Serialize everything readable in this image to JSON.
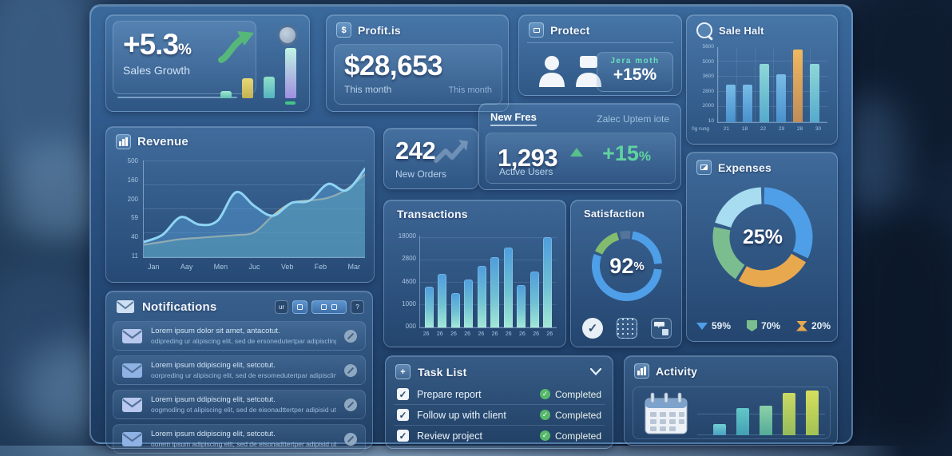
{
  "cards": {
    "sales_growth": {
      "value": "+5.3",
      "unit": "%",
      "label": "Sales Growth",
      "accent": "#55b87a"
    },
    "profit": {
      "title": "Profit.is",
      "value": "$28,653",
      "period": "This month",
      "period_right": "This month"
    },
    "protect": {
      "title": "Protect",
      "badge_label": "Jera moth",
      "badge_value": "+15%"
    },
    "sale_halt": {
      "title": "Sale Halt"
    },
    "revenue": {
      "title": "Revenue"
    },
    "orders": {
      "value": "242",
      "label": "New Orders"
    },
    "users_panel": {
      "tab_active": "New Fres",
      "tab_inactive": "Zalec Uptem iote",
      "value": "1,293",
      "label": "Active Users",
      "delta": "+15",
      "delta_unit": "%"
    },
    "transactions": {
      "title": "Transactions"
    },
    "satisfaction": {
      "title": "Satisfaction",
      "value": "92",
      "unit": "%"
    },
    "expenses": {
      "title": "Expenses",
      "center_label": "25%",
      "legend": [
        {
          "icon": "triangle-down-icon",
          "color": "#4f9fe8",
          "label": "59%"
        },
        {
          "icon": "shield-icon",
          "color": "#7bbd8f",
          "label": "70%"
        },
        {
          "icon": "hourglass-icon",
          "color": "#e8a84e",
          "label": "20%"
        }
      ]
    },
    "notifications": {
      "title": "Notifications",
      "buttons": [
        {
          "label": "ur",
          "style": "dark"
        },
        {
          "label": "",
          "style": "blue"
        },
        {
          "label": "",
          "style": "pill"
        },
        {
          "label": "?",
          "style": "dark"
        }
      ],
      "rows": [
        {
          "line1": "Lorem ipsum dolor sit amet, antacotut.",
          "line2": "odipreding ur alipiscing elit, sed de ersonedutertpar adipiscling"
        },
        {
          "line1": "Lorem ipsum ddipiscing elit, setcotut.",
          "line2": "oorpreding ur alipiscing elit, sed de ersomedutertpar adipiscling"
        },
        {
          "line1": "Lorem ipsum ddipiscing elit, setcotut.",
          "line2": "oogmoding ot alipiscing elit, sed de eisonadttertper adipisid ut"
        },
        {
          "line1": "Lorem ipsum ddipiscing elit, setcotut.",
          "line2": "oorem ipsum adipiscing elit, sed de eisonadttertper adipisid ut"
        }
      ]
    },
    "task_list": {
      "title": "Task List",
      "tasks": [
        {
          "label": "Prepare report",
          "status": "Completed",
          "checked": true
        },
        {
          "label": "Follow up with client",
          "status": "Completed",
          "checked": true
        },
        {
          "label": "Review project",
          "status": "Completed",
          "checked": true
        }
      ]
    },
    "activity": {
      "title": "Activity"
    }
  },
  "chart_data": [
    {
      "id": "sales_growth_mini",
      "type": "bar",
      "values": [
        6,
        16,
        17,
        40
      ],
      "ylim": [
        0,
        46
      ],
      "bar_colors": [
        {
          "from": "#9fe8d4",
          "to": "#5fc0b0"
        },
        {
          "from": "#e8d878",
          "to": "#c2b254"
        },
        {
          "from": "#8fe0c8",
          "to": "#55b4c0"
        },
        {
          "from": "#c0f4e4",
          "to": "#9f8fe0"
        }
      ]
    },
    {
      "id": "sale_halt",
      "type": "bar",
      "title": "Sale Halt",
      "categories": [
        "21",
        "18",
        "22",
        "29",
        "28",
        "30"
      ],
      "values": [
        2800,
        2800,
        4300,
        3500,
        5400,
        4300
      ],
      "ylim": [
        0,
        5600
      ],
      "yticks": [
        "5600",
        "5000",
        "3600",
        "2800",
        "2000",
        "10"
      ],
      "corner_label": "0g rung",
      "bar_colors": [
        {
          "from": "#79bce8",
          "to": "#4a90cc"
        },
        {
          "from": "#79bce8",
          "to": "#4a90cc"
        },
        {
          "from": "#8fd8d8",
          "to": "#55aacc"
        },
        {
          "from": "#79bce8",
          "to": "#4a90cc"
        },
        {
          "from": "#f0b860",
          "to": "#c08c58"
        },
        {
          "from": "#8fd8d8",
          "to": "#55aacc"
        }
      ]
    },
    {
      "id": "revenue",
      "type": "area",
      "title": "Revenue",
      "categories": [
        "Jan",
        "Aay",
        "Men",
        "Juc",
        "Veb",
        "Feb",
        "Mar"
      ],
      "yticks": [
        "500",
        "160",
        "200",
        "59",
        "40",
        "11"
      ],
      "ylim": [
        0,
        350
      ],
      "grid": true,
      "series": [
        {
          "name": "primary",
          "color": "#8fd4f4",
          "fill": "rgba(86,156,214,0.50)",
          "values": [
            55,
            80,
            145,
            118,
            132,
            235,
            185,
            150,
            196,
            205,
            265,
            242,
            320
          ]
        },
        {
          "name": "secondary",
          "color": "#c9bd8e",
          "fill": "rgba(104,178,160,0.42)",
          "values": [
            45,
            55,
            65,
            70,
            75,
            80,
            90,
            150,
            196,
            205,
            215,
            245,
            300
          ]
        }
      ]
    },
    {
      "id": "transactions",
      "type": "bar",
      "title": "Transactions",
      "categories": [
        "26",
        "26",
        "26",
        "26",
        "26",
        "26",
        "26",
        "26",
        "26",
        "26"
      ],
      "values": [
        44,
        58,
        37,
        52,
        66,
        76,
        86,
        46,
        60,
        97
      ],
      "ylim": [
        0,
        100
      ],
      "yticks": [
        "18000",
        "2800",
        "4600",
        "1000",
        "000"
      ]
    },
    {
      "id": "satisfaction",
      "type": "donut",
      "value": 92,
      "arcs": [
        {
          "color": "#4f9fe8",
          "from": 10,
          "to": 86
        },
        {
          "color": "#4f9fe8",
          "from": 96,
          "to": 290
        },
        {
          "color": "#83bc6e",
          "from": 295,
          "to": 343
        },
        {
          "color": "#54749a",
          "from": 348,
          "to": 366
        }
      ]
    },
    {
      "id": "expenses",
      "type": "donut",
      "center_label": "25%",
      "arcs": [
        {
          "color": "#4f9fe8",
          "from": 2,
          "to": 115
        },
        {
          "color": "#e8a84e",
          "from": 120,
          "to": 209
        },
        {
          "color": "#7bbd8f",
          "from": 213,
          "to": 282
        },
        {
          "color": "#a8dcf0",
          "from": 287,
          "to": 358
        }
      ]
    },
    {
      "id": "activity",
      "type": "bar",
      "values": [
        16,
        38,
        40,
        58,
        62
      ],
      "ylim": [
        0,
        64
      ],
      "bar_colors": [
        {
          "from": "#6fd0d4",
          "to": "#4aa0c0"
        },
        {
          "from": "#62c8c8",
          "to": "#44a0b4"
        },
        {
          "from": "#8cd0a8",
          "to": "#54ac98"
        },
        {
          "from": "#ccd964",
          "to": "#94bc5c"
        },
        {
          "from": "#d6de5e",
          "to": "#a2c255"
        }
      ]
    }
  ]
}
